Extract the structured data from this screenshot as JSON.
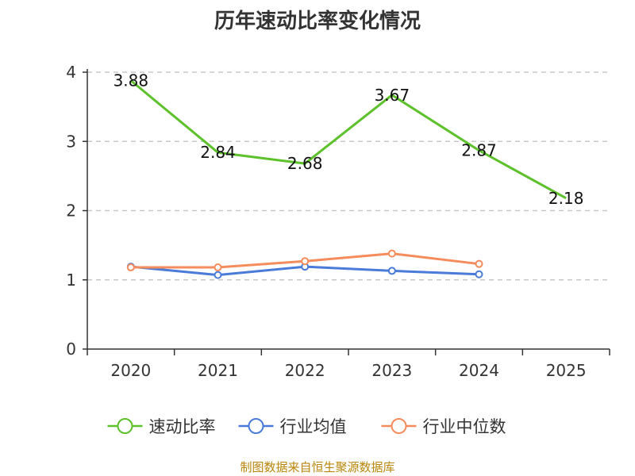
{
  "chart_data": {
    "type": "line",
    "title": "历年速动比率变化情况",
    "categories": [
      "2020",
      "2021",
      "2022",
      "2023",
      "2024",
      "2025"
    ],
    "ylim": [
      0,
      4
    ],
    "yticks": [
      0,
      1,
      2,
      3,
      4
    ],
    "grid": true,
    "legend_position": "bottom",
    "xlabel": "",
    "ylabel": "",
    "series": [
      {
        "name": "速动比率",
        "color": "#5cc12a",
        "show_labels": true,
        "show_markers": false,
        "values": [
          3.88,
          2.84,
          2.68,
          3.67,
          2.87,
          2.18
        ]
      },
      {
        "name": "行业均值",
        "color": "#4a7bd8",
        "show_labels": false,
        "show_markers": true,
        "values": [
          1.19,
          1.07,
          1.19,
          1.13,
          1.08,
          null
        ]
      },
      {
        "name": "行业中位数",
        "color": "#f68c5c",
        "show_labels": false,
        "show_markers": true,
        "values": [
          1.18,
          1.18,
          1.27,
          1.38,
          1.23,
          null
        ]
      }
    ]
  },
  "footer": {
    "source": "制图数据来自恒生聚源数据库"
  }
}
